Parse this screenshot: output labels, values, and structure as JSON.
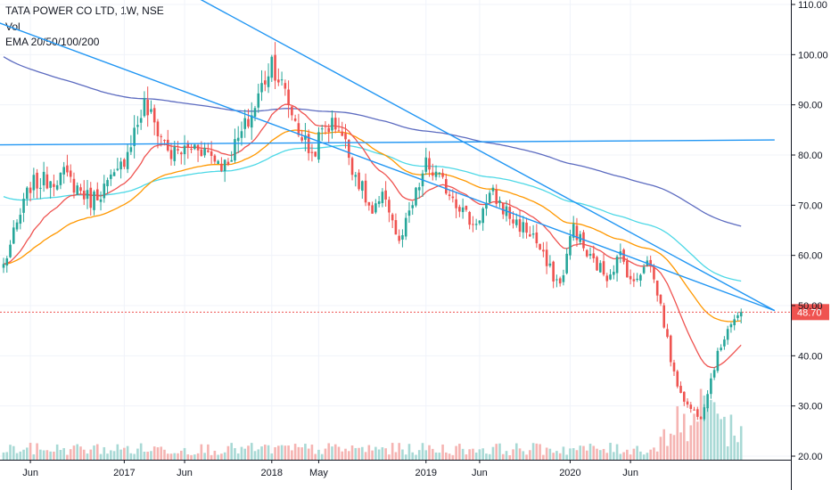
{
  "chart_data": {
    "type": "candlestick",
    "title": "TATA POWER CO LTD, 1W, NSE",
    "indicators": [
      "Vol",
      "EMA 20/50/100/200"
    ],
    "price_axis": {
      "ticks": [
        "20.00",
        "30.00",
        "40.00",
        "50.00",
        "60.00",
        "70.00",
        "80.00",
        "90.00",
        "100.00",
        "110.00"
      ],
      "range": [
        20,
        110
      ]
    },
    "time_axis": {
      "labels": [
        "Jun",
        "2017",
        "Jun",
        "2018",
        "May",
        "2019",
        "Jun",
        "2020",
        "Jun"
      ]
    },
    "current_price": {
      "label": "48.70",
      "value": 48.7,
      "color": "#ef5350"
    },
    "anchors": [
      {
        "w": 0,
        "p": 58
      },
      {
        "w": 8,
        "p": 74
      },
      {
        "w": 18,
        "p": 76
      },
      {
        "w": 26,
        "p": 71
      },
      {
        "w": 34,
        "p": 76
      },
      {
        "w": 42,
        "p": 90
      },
      {
        "w": 50,
        "p": 80
      },
      {
        "w": 58,
        "p": 82
      },
      {
        "w": 66,
        "p": 78
      },
      {
        "w": 74,
        "p": 88
      },
      {
        "w": 80,
        "p": 99
      },
      {
        "w": 84,
        "p": 92
      },
      {
        "w": 88,
        "p": 85
      },
      {
        "w": 92,
        "p": 80
      },
      {
        "w": 96,
        "p": 86
      },
      {
        "w": 100,
        "p": 86
      },
      {
        "w": 104,
        "p": 78
      },
      {
        "w": 110,
        "p": 68
      },
      {
        "w": 114,
        "p": 72
      },
      {
        "w": 118,
        "p": 62
      },
      {
        "w": 122,
        "p": 70
      },
      {
        "w": 126,
        "p": 78
      },
      {
        "w": 134,
        "p": 72
      },
      {
        "w": 140,
        "p": 66
      },
      {
        "w": 146,
        "p": 72
      },
      {
        "w": 152,
        "p": 67
      },
      {
        "w": 158,
        "p": 64
      },
      {
        "w": 162,
        "p": 58
      },
      {
        "w": 166,
        "p": 54
      },
      {
        "w": 170,
        "p": 66
      },
      {
        "w": 174,
        "p": 60
      },
      {
        "w": 180,
        "p": 56
      },
      {
        "w": 184,
        "p": 60
      },
      {
        "w": 188,
        "p": 54
      },
      {
        "w": 192,
        "p": 60
      },
      {
        "w": 196,
        "p": 50
      },
      {
        "w": 200,
        "p": 36
      },
      {
        "w": 204,
        "p": 30
      },
      {
        "w": 208,
        "p": 28
      },
      {
        "w": 212,
        "p": 38
      },
      {
        "w": 216,
        "p": 46
      },
      {
        "w": 220,
        "p": 48.7
      }
    ],
    "ema_colors": {
      "ema20": "#ef5350",
      "ema50": "#ff9800",
      "ema100": "#4dd8e6",
      "ema200": "#5c6bc0"
    },
    "candle_colors": {
      "up": "#26a69a",
      "down": "#ef5350"
    },
    "trendlines": [
      {
        "from": {
          "w": -8,
          "p": 82
        },
        "to": {
          "w": 230,
          "p": 83
        }
      },
      {
        "from": {
          "w": 56,
          "p": 112
        },
        "to": {
          "w": 230,
          "p": 49
        }
      },
      {
        "from": {
          "w": -8,
          "p": 108
        },
        "to": {
          "w": 230,
          "p": 49
        }
      }
    ]
  }
}
